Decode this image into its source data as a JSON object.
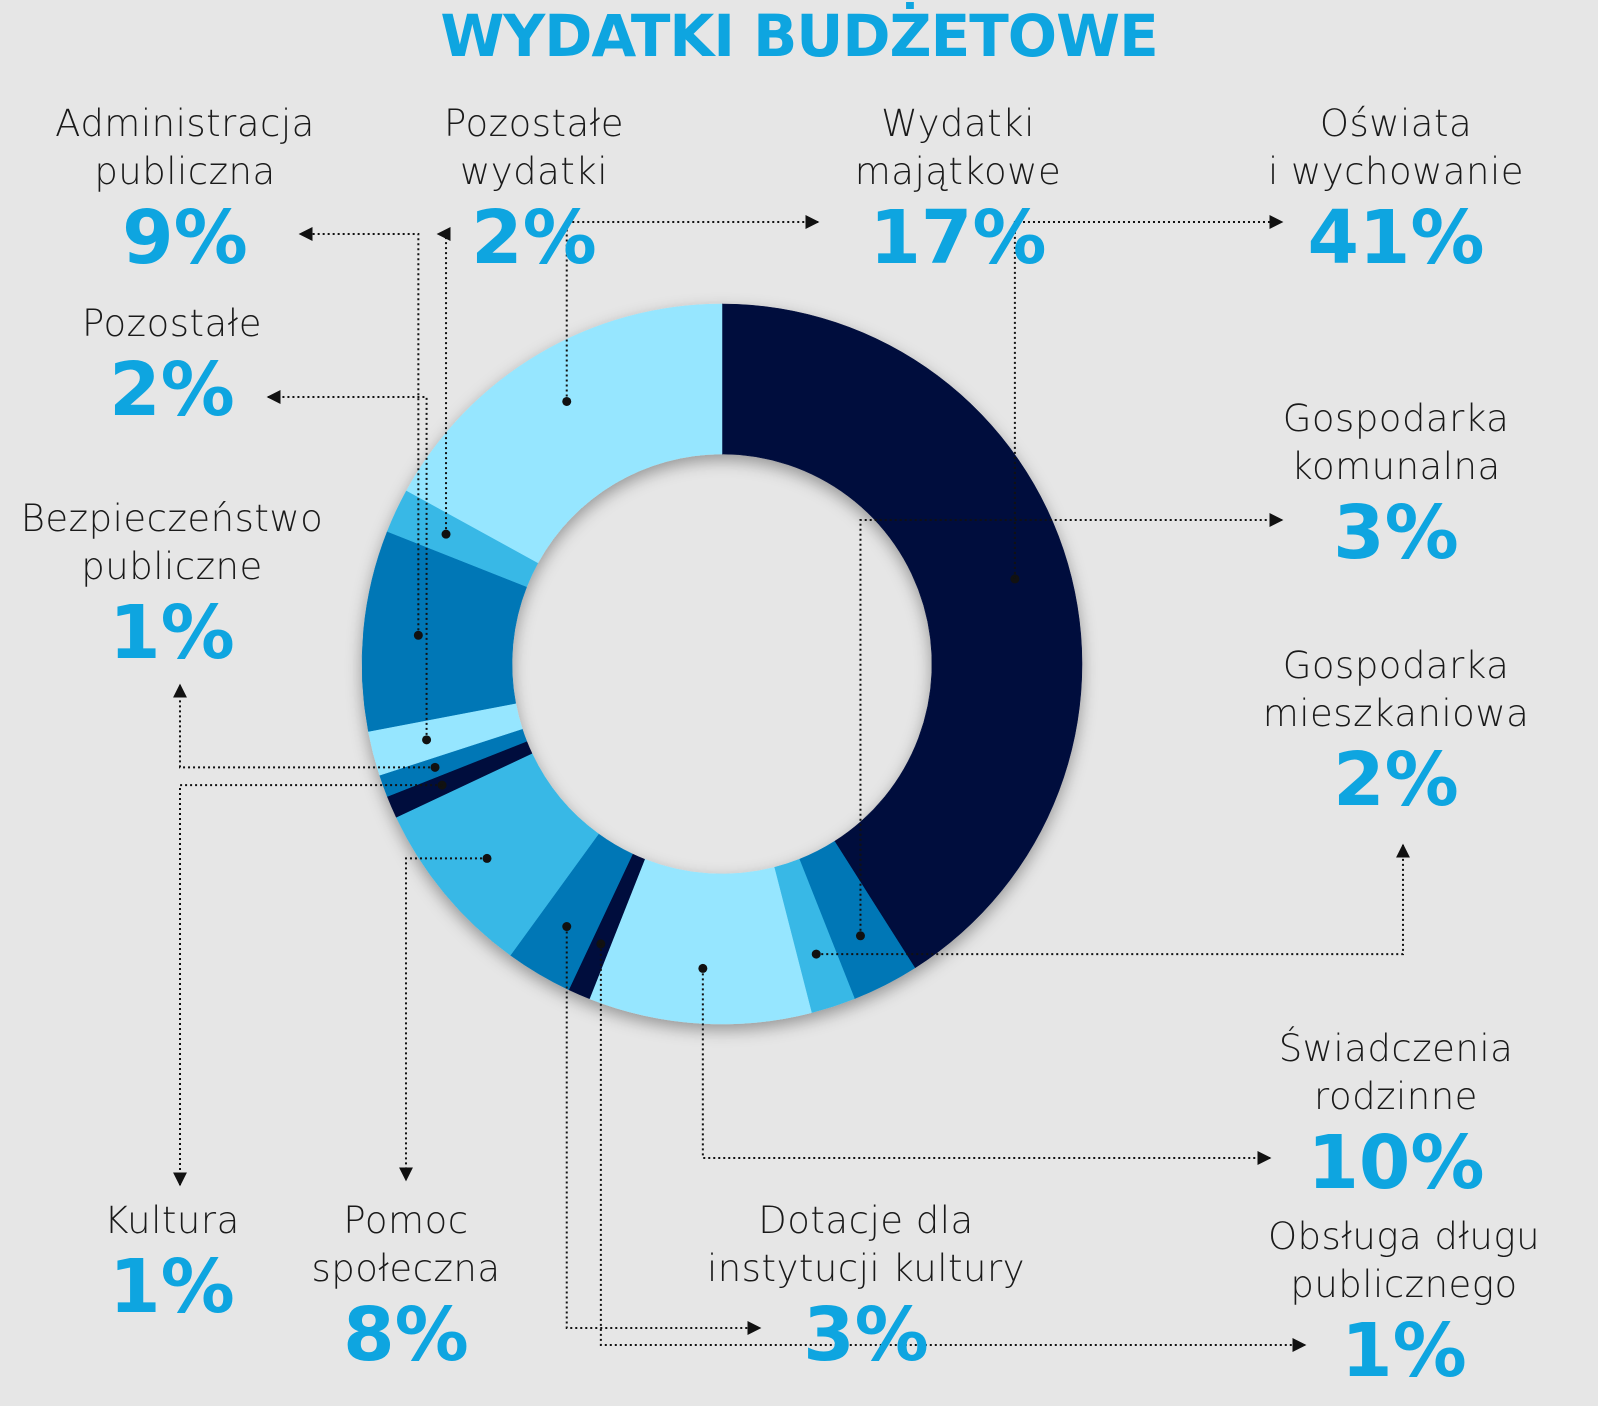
{
  "chart_data": {
    "type": "donut",
    "title": "WYDATKI BUDŻETOWE",
    "categories": [
      "Oświata\ni wychowanie",
      "Gospodarka\nkomunalna",
      "Gospodarka\nmieszkaniowa",
      "Świadczenia\nrodzinne",
      "Obsługa długu\npublicznego",
      "Dotacje dla\ninstytucji kultury",
      "Pomoc\nspołeczna",
      "Kultura",
      "Bezpieczeństwo\npubliczne",
      "Pozostałe",
      "Administracja\npubliczna",
      "Pozostałe\nwydatki",
      "Wydatki\nmajątkowe"
    ],
    "values": [
      41,
      3,
      2,
      10,
      1,
      3,
      8,
      1,
      1,
      2,
      9,
      2,
      17
    ],
    "value_labels": [
      "41%",
      "3%",
      "2%",
      "10%",
      "1%",
      "3%",
      "8%",
      "1%",
      "1%",
      "2%",
      "9%",
      "2%",
      "17%"
    ],
    "colors": [
      "#000c3c",
      "#0077b6",
      "#38b8e6",
      "#96e6ff",
      "#000c3c",
      "#0077b6",
      "#38b8e6",
      "#000c3c",
      "#0077b6",
      "#96e6ff",
      "#0077b6",
      "#38b8e6",
      "#96e6ff"
    ]
  }
}
